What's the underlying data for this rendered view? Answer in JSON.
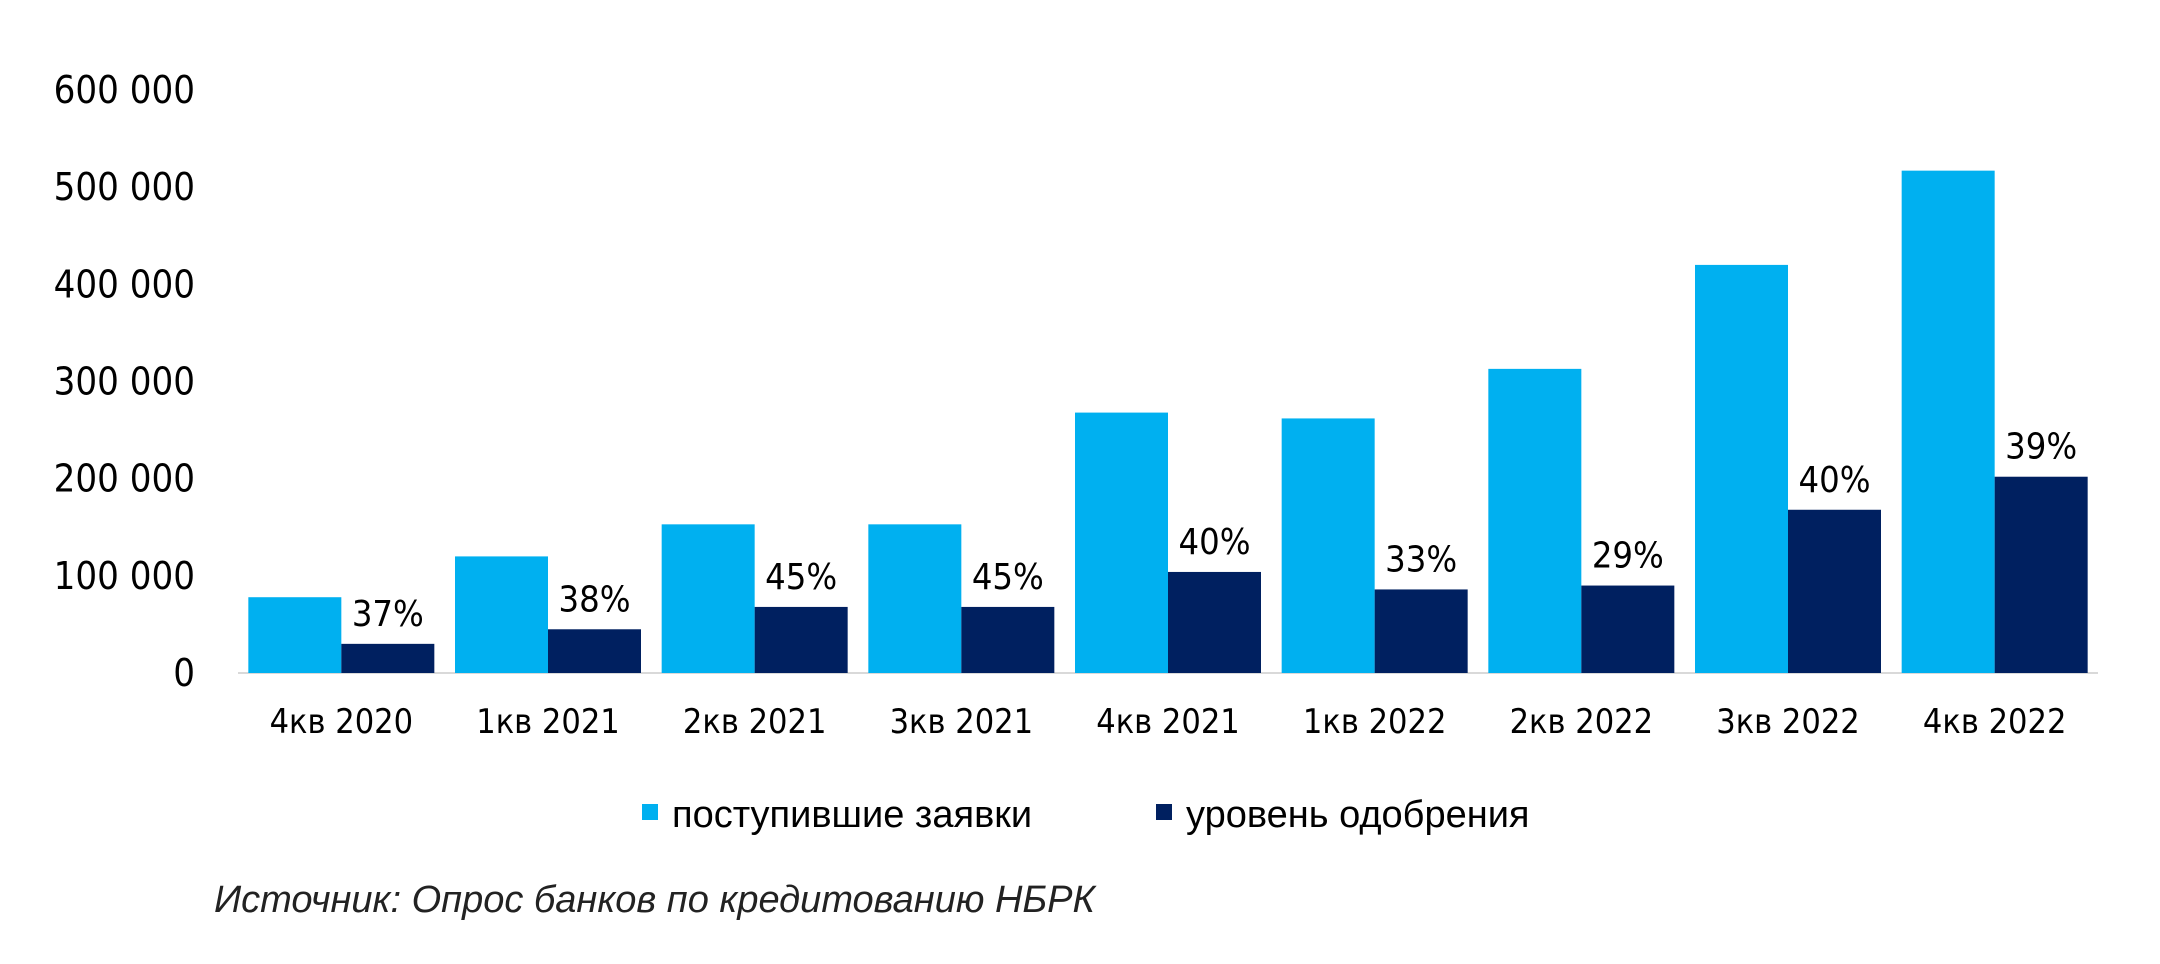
{
  "chart_data": {
    "type": "bar",
    "categories": [
      "4кв 2020",
      "1кв 2021",
      "2кв 2021",
      "3кв 2021",
      "4кв 2021",
      "1кв 2022",
      "2кв 2022",
      "3кв 2022",
      "4кв 2022"
    ],
    "series": [
      {
        "name": "поступившие заявки",
        "color": "#00B0F0",
        "values": [
          78000,
          120000,
          153000,
          153000,
          268000,
          262000,
          313000,
          420000,
          517000
        ]
      },
      {
        "name": "уровень одобрения",
        "color": "#002060",
        "values": [
          30000,
          45000,
          68000,
          68000,
          104000,
          86000,
          90000,
          168000,
          202000
        ],
        "data_labels": [
          "37%",
          "38%",
          "45%",
          "45%",
          "40%",
          "33%",
          "29%",
          "40%",
          "39%"
        ]
      }
    ],
    "yticks": [
      "0",
      "100 000",
      "200 000",
      "300 000",
      "400 000",
      "500 000",
      "600 000"
    ],
    "ylim": [
      0,
      600000
    ],
    "grid": false,
    "legend_position": "bottom-center",
    "source": "Источник: Опрос банков по кредитованию НБРК"
  }
}
